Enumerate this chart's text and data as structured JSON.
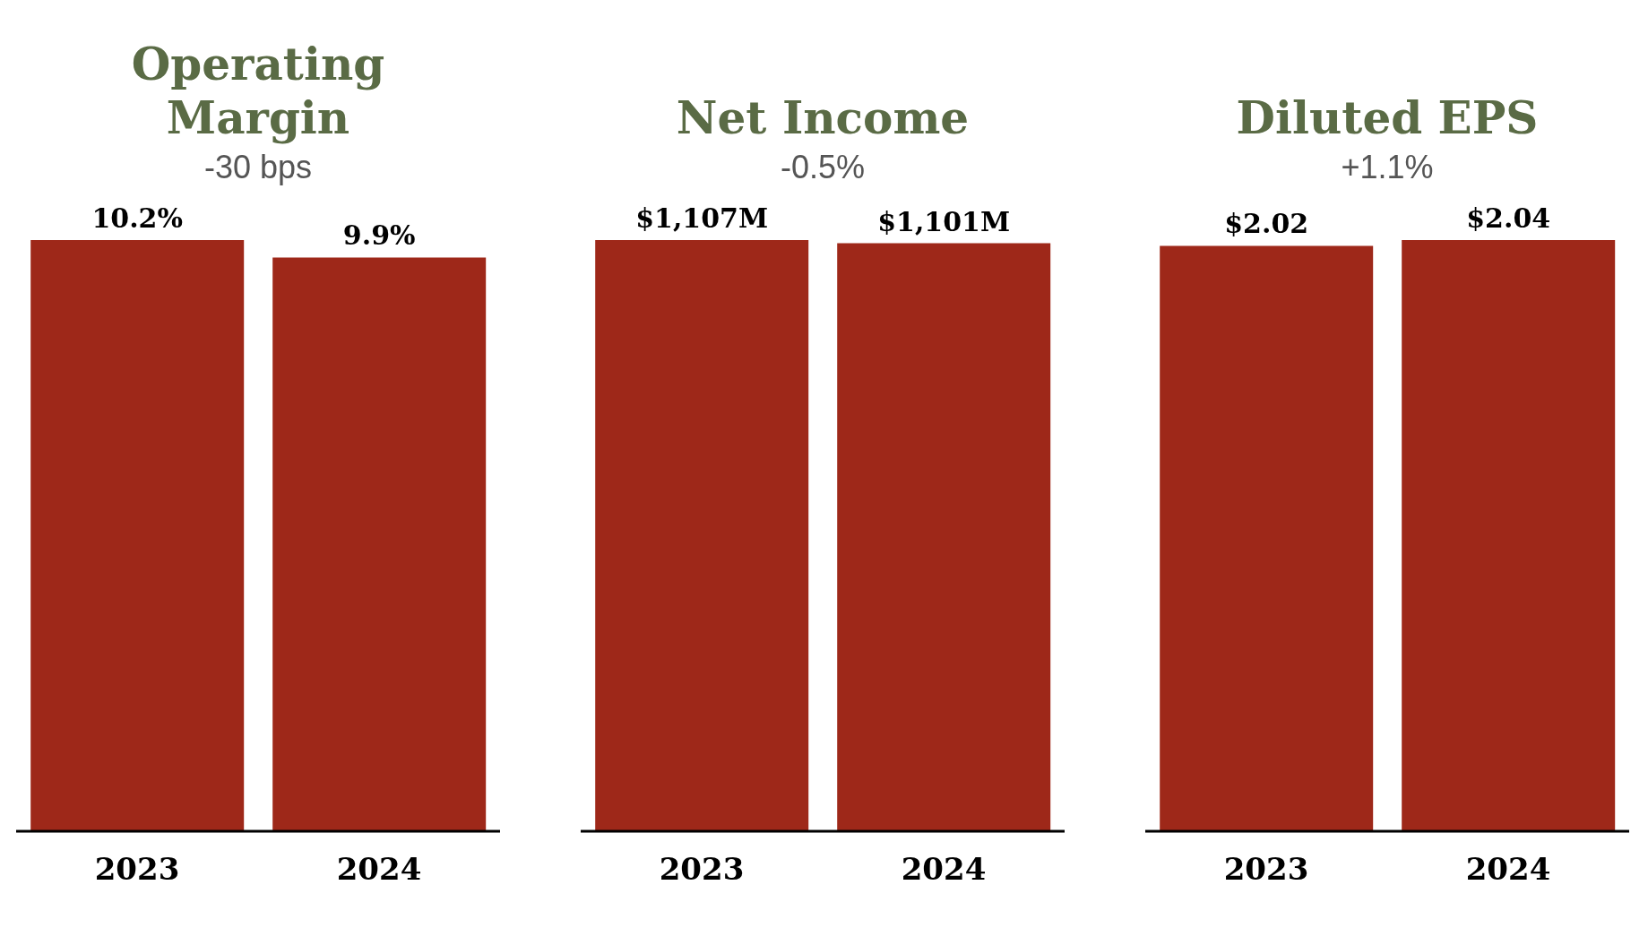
{
  "chart_data": [
    {
      "type": "bar",
      "title": "Operating Margin",
      "subtitle": "-30 bps",
      "categories": [
        "2023",
        "2024"
      ],
      "values": [
        10.2,
        9.9
      ],
      "value_labels": [
        "10.2%",
        "9.9%"
      ],
      "color": "#9e2819"
    },
    {
      "type": "bar",
      "title": "Net Income",
      "subtitle": "-0.5%",
      "categories": [
        "2023",
        "2024"
      ],
      "values": [
        1107,
        1101
      ],
      "value_labels": [
        "$1,107M",
        "$1,101M"
      ],
      "color": "#9e2819"
    },
    {
      "type": "bar",
      "title": "Diluted EPS",
      "subtitle": "+1.1%",
      "categories": [
        "2023",
        "2024"
      ],
      "values": [
        2.02,
        2.04
      ],
      "value_labels": [
        "$2.02",
        "$2.04"
      ],
      "color": "#9e2819"
    }
  ]
}
